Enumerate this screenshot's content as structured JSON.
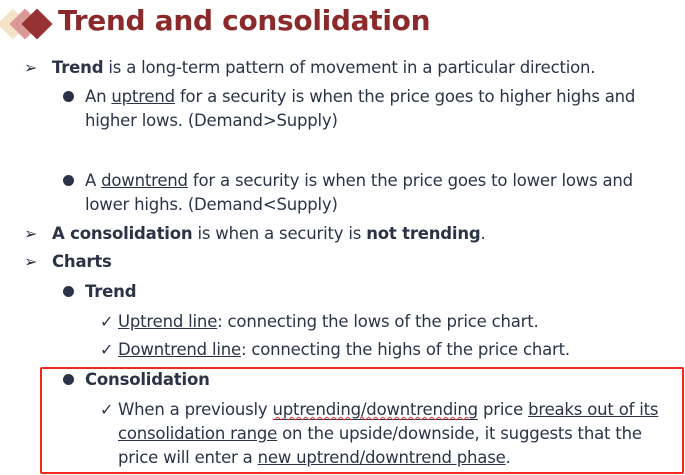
{
  "title": "Trend and consolidation",
  "colors": {
    "title": "#8b2a2a",
    "text": "#2b3447",
    "highlight_box": "#f0281e",
    "logo": [
      "#f5e3c8",
      "#dc9a96",
      "#983232"
    ]
  },
  "l1": {
    "bold": "Trend",
    "rest": " is a long-term pattern of movement in a particular direction."
  },
  "l2": {
    "a": "An ",
    "u": "uptrend",
    "b": " for a security is when the price goes to higher highs and",
    "c": "higher lows. (Demand>Supply)"
  },
  "l3": {
    "a": "A ",
    "u": "downtrend",
    "b": " for a security is when the price goes to lower lows and",
    "c": "lower highs. (Demand<Supply)"
  },
  "l4": {
    "bold1": "A consolidation",
    "mid": " is when a security is ",
    "bold2": "not trending",
    "end": "."
  },
  "l5": "Charts",
  "l6": "Trend",
  "l7": {
    "u": "Uptrend line",
    "rest": ": connecting the lows of the price chart."
  },
  "l8": {
    "u": "Downtrend line",
    "rest": ": connecting the highs of the price chart."
  },
  "l9": "Consolidation",
  "l10": {
    "a": "When a previously ",
    "sq": "uptrending/downtrending",
    "b": " price ",
    "u1": "breaks out of its",
    "u2": "consolidation range",
    "c": " on the upside/downside, it suggests that the",
    "d": "price will enter a ",
    "u3": "new uptrend/downtrend phase",
    "e": "."
  },
  "icons": {
    "arrow": "➢",
    "check": "✓"
  }
}
